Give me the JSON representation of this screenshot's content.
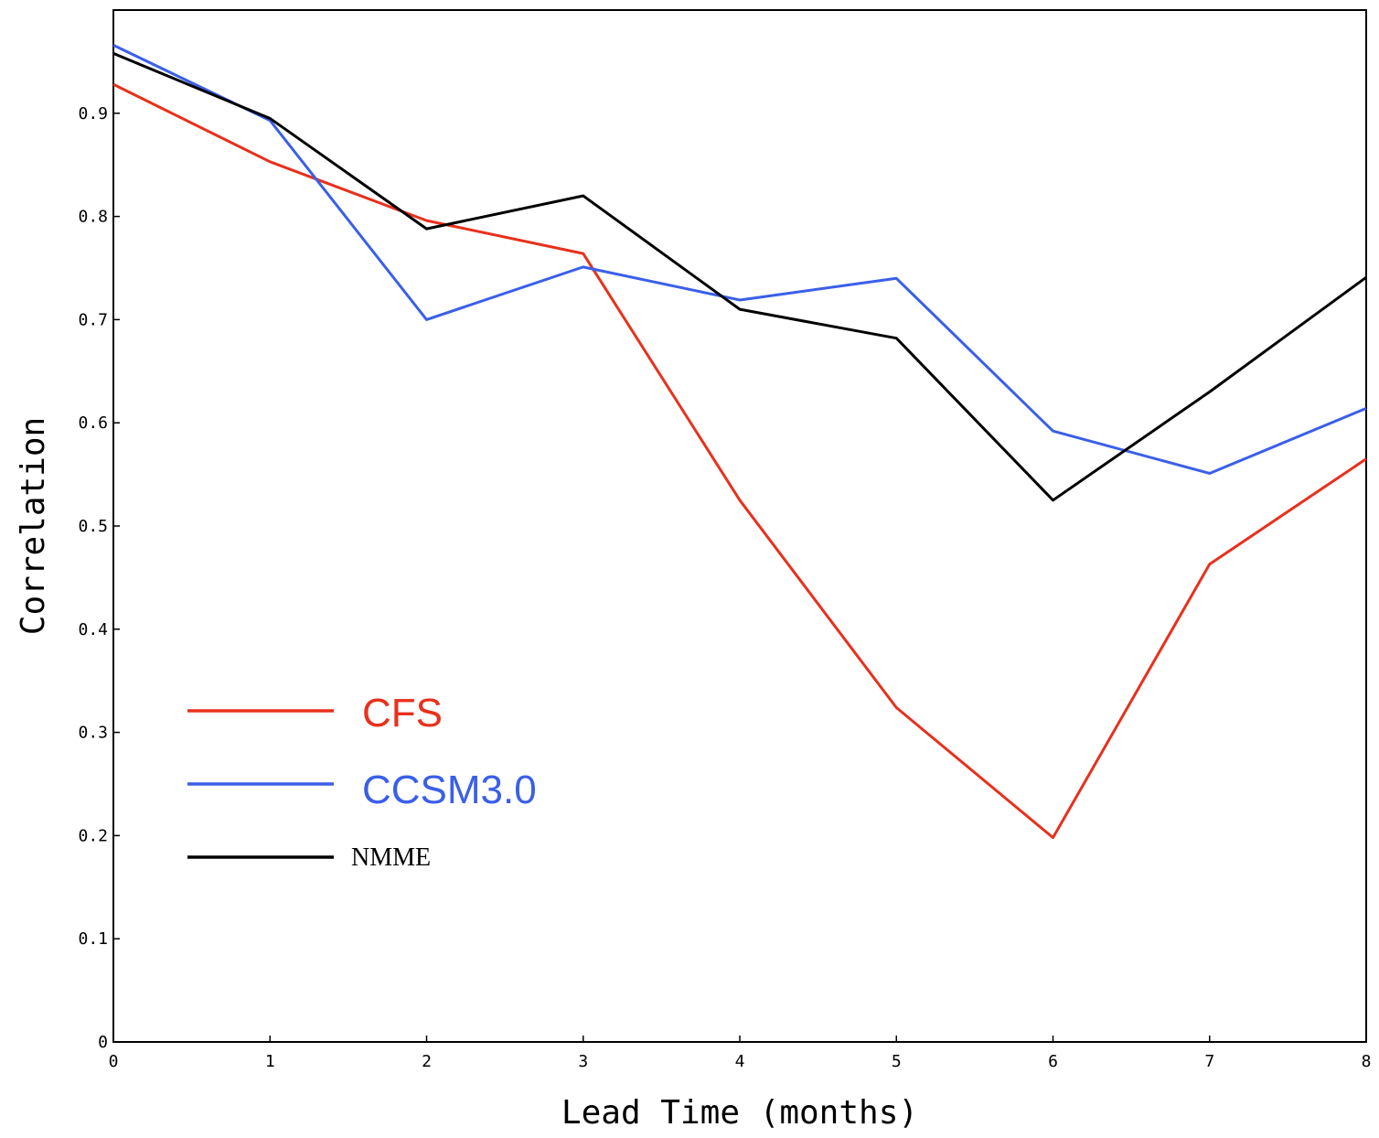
{
  "chart_data": {
    "type": "line",
    "xlabel": "Lead Time (months)",
    "ylabel": "Correlation",
    "xlim": [
      0,
      8
    ],
    "ylim": [
      0,
      1.0
    ],
    "x_ticks": [
      0,
      1,
      2,
      3,
      4,
      5,
      6,
      7,
      8
    ],
    "y_ticks": [
      0,
      0.1,
      0.2,
      0.3,
      0.4,
      0.5,
      0.6,
      0.7,
      0.8,
      0.9
    ],
    "y_tick_labels": [
      "0",
      "0.1",
      "0.2",
      "0.3",
      "0.4",
      "0.5",
      "0.6",
      "0.7",
      "0.8",
      "0.9"
    ],
    "x": [
      0,
      1,
      2,
      3,
      4,
      5,
      6,
      7,
      8
    ],
    "grid": false,
    "legend_position": "lower-left",
    "series": [
      {
        "name": "CFS",
        "color": "#e8301c",
        "values": [
          0.928,
          0.853,
          0.796,
          0.764,
          0.525,
          0.324,
          0.198,
          0.463,
          0.565
        ]
      },
      {
        "name": "CCSM3.0",
        "color": "#3a5fe8",
        "values": [
          0.966,
          0.893,
          0.7,
          0.751,
          0.719,
          0.74,
          0.592,
          0.551,
          0.614
        ]
      },
      {
        "name": "NMME",
        "color": "#000000",
        "values": [
          0.958,
          0.895,
          0.788,
          0.82,
          0.71,
          0.682,
          0.525,
          0.63,
          0.741
        ]
      }
    ]
  }
}
